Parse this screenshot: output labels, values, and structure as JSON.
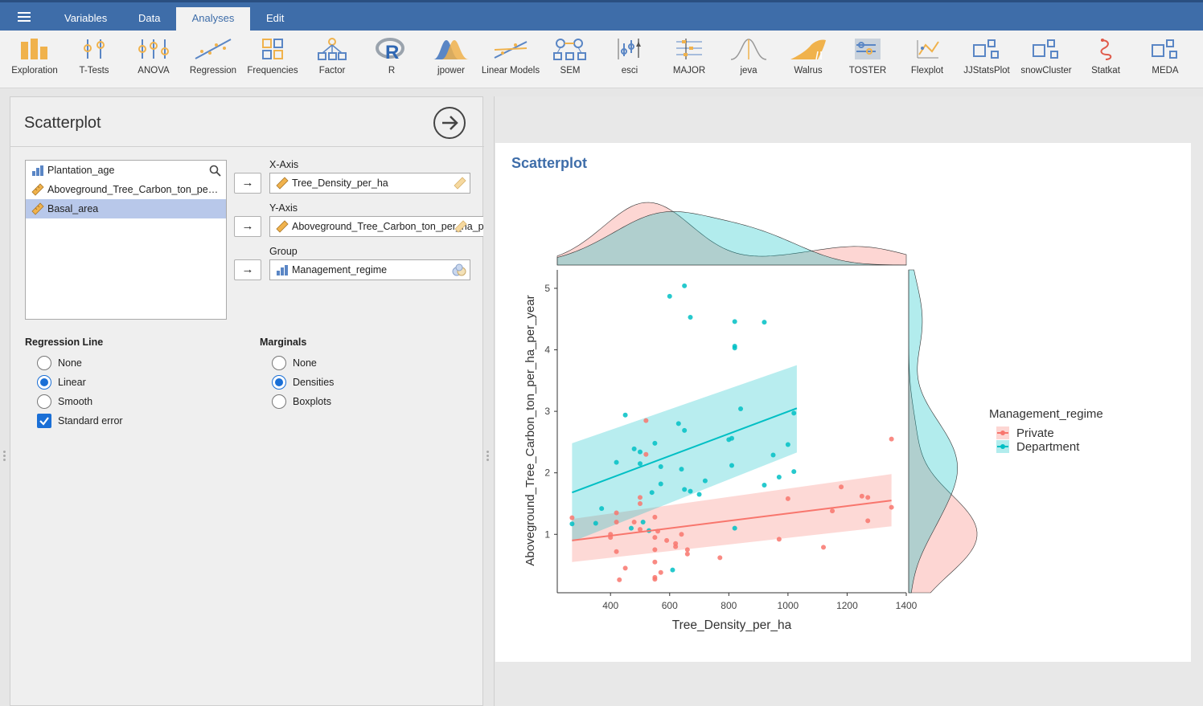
{
  "menu": {
    "tabs": [
      "Variables",
      "Data",
      "Analyses",
      "Edit"
    ],
    "active": "Analyses"
  },
  "ribbon": [
    "Exploration",
    "T-Tests",
    "ANOVA",
    "Regression",
    "Frequencies",
    "Factor",
    "R",
    "jpower",
    "Linear Models",
    "SEM",
    "esci",
    "MAJOR",
    "jeva",
    "Walrus",
    "TOSTER",
    "Flexplot",
    "JJStatsPlot",
    "snowCluster",
    "Statkat",
    "MEDA"
  ],
  "panel": {
    "title": "Scatterplot",
    "variables": [
      {
        "name": "Plantation_age",
        "type": "nominal",
        "selected": false
      },
      {
        "name": "Aboveground_Tree_Carbon_ton_per_ha_per_year",
        "type": "continuous",
        "selected": false
      },
      {
        "name": "Basal_area",
        "type": "continuous",
        "selected": true
      }
    ],
    "x_axis": {
      "label": "X-Axis",
      "value": "Tree_Density_per_ha"
    },
    "y_axis": {
      "label": "Y-Axis",
      "value": "Aboveground_Tree_Carbon_ton_per_ha_per_year"
    },
    "group": {
      "label": "Group",
      "value": "Management_regime"
    },
    "regression": {
      "title": "Regression Line",
      "options": [
        "None",
        "Linear",
        "Smooth"
      ],
      "selected": "Linear",
      "std_error_label": "Standard error",
      "std_error": true
    },
    "marginals": {
      "title": "Marginals",
      "options": [
        "None",
        "Densities",
        "Boxplots"
      ],
      "selected": "Densities"
    }
  },
  "results": {
    "title": "Scatterplot"
  },
  "colors": {
    "private": "#F8766D",
    "department": "#00BFC4",
    "accent": "#3e6da9"
  },
  "chart_data": {
    "type": "scatter",
    "xlabel": "Tree_Density_per_ha",
    "ylabel": "Aboveground_Tree_Carbon_ton_per_ha_per_year",
    "xlim": [
      220,
      1400
    ],
    "ylim": [
      0.05,
      5.3
    ],
    "x_ticks": [
      400,
      600,
      800,
      1000,
      1200,
      1400
    ],
    "y_ticks": [
      1,
      2,
      3,
      4,
      5
    ],
    "legend_title": "Management_regime",
    "legend_position": "right",
    "marginals": "densities",
    "series": [
      {
        "name": "Private",
        "color": "#F8766D",
        "points": [
          [
            270,
            1.27
          ],
          [
            400,
            1.0
          ],
          [
            400,
            0.95
          ],
          [
            420,
            1.2
          ],
          [
            420,
            1.35
          ],
          [
            420,
            0.72
          ],
          [
            430,
            0.26
          ],
          [
            450,
            0.45
          ],
          [
            480,
            1.2
          ],
          [
            500,
            1.5
          ],
          [
            500,
            1.6
          ],
          [
            500,
            1.08
          ],
          [
            520,
            2.85
          ],
          [
            520,
            2.3
          ],
          [
            550,
            1.28
          ],
          [
            550,
            0.95
          ],
          [
            550,
            0.75
          ],
          [
            550,
            0.55
          ],
          [
            550,
            0.3
          ],
          [
            550,
            0.27
          ],
          [
            560,
            1.05
          ],
          [
            570,
            0.38
          ],
          [
            590,
            0.9
          ],
          [
            620,
            0.85
          ],
          [
            620,
            0.8
          ],
          [
            640,
            1.0
          ],
          [
            660,
            0.75
          ],
          [
            660,
            0.68
          ],
          [
            770,
            0.62
          ],
          [
            970,
            0.92
          ],
          [
            1000,
            1.58
          ],
          [
            1120,
            0.79
          ],
          [
            1150,
            1.38
          ],
          [
            1180,
            1.77
          ],
          [
            1250,
            1.62
          ],
          [
            1270,
            1.6
          ],
          [
            1270,
            1.22
          ],
          [
            1350,
            1.44
          ],
          [
            1350,
            2.55
          ]
        ],
        "fit": {
          "x": [
            270,
            1350
          ],
          "y": [
            0.9,
            1.55
          ],
          "lower": [
            0.55,
            1.13
          ],
          "upper": [
            1.25,
            1.98
          ]
        }
      },
      {
        "name": "Department",
        "color": "#00BFC4",
        "points": [
          [
            270,
            1.17
          ],
          [
            350,
            1.18
          ],
          [
            370,
            1.42
          ],
          [
            420,
            2.17
          ],
          [
            450,
            2.94
          ],
          [
            470,
            1.1
          ],
          [
            480,
            2.39
          ],
          [
            500,
            2.34
          ],
          [
            500,
            2.15
          ],
          [
            510,
            1.2
          ],
          [
            530,
            1.06
          ],
          [
            540,
            1.68
          ],
          [
            550,
            2.48
          ],
          [
            570,
            2.1
          ],
          [
            570,
            1.82
          ],
          [
            600,
            4.87
          ],
          [
            610,
            0.42
          ],
          [
            630,
            2.8
          ],
          [
            640,
            2.06
          ],
          [
            650,
            5.04
          ],
          [
            650,
            2.69
          ],
          [
            650,
            1.73
          ],
          [
            670,
            1.7
          ],
          [
            670,
            4.53
          ],
          [
            700,
            1.65
          ],
          [
            720,
            1.87
          ],
          [
            800,
            2.54
          ],
          [
            810,
            2.56
          ],
          [
            810,
            2.12
          ],
          [
            820,
            1.1
          ],
          [
            820,
            4.06
          ],
          [
            820,
            4.03
          ],
          [
            820,
            4.46
          ],
          [
            840,
            3.04
          ],
          [
            920,
            4.45
          ],
          [
            920,
            1.8
          ],
          [
            950,
            2.29
          ],
          [
            970,
            1.93
          ],
          [
            1000,
            2.46
          ],
          [
            1020,
            2.97
          ],
          [
            1020,
            2.02
          ]
        ],
        "fit": {
          "x": [
            270,
            1030
          ],
          "y": [
            1.68,
            3.05
          ],
          "lower": [
            0.88,
            2.33
          ],
          "upper": [
            2.48,
            3.75
          ]
        }
      }
    ]
  }
}
